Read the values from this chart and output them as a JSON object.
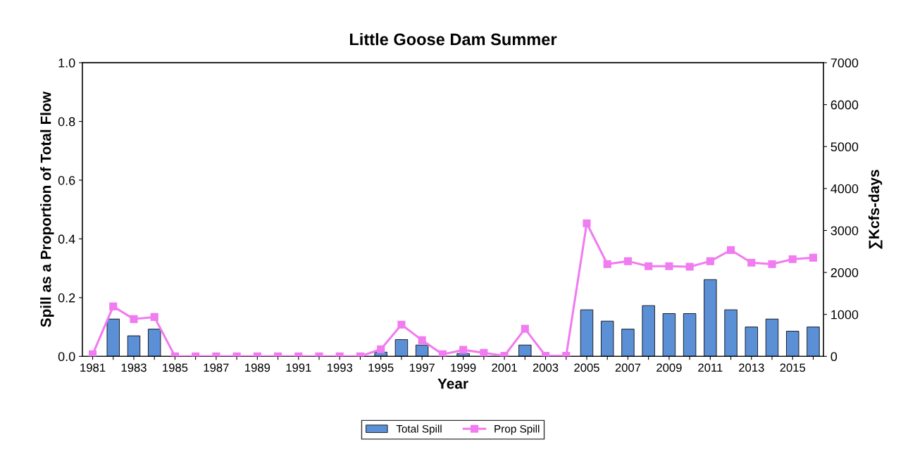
{
  "chart_data": {
    "type": "bar",
    "title": "Little Goose Dam Summer",
    "xlabel": "Year",
    "ylabel": "Spill as a Proportion of Total Flow",
    "y2label": "∑Kcfs-days",
    "categories": [
      "1981",
      null,
      "1983",
      null,
      "1985",
      null,
      "1987",
      null,
      "1989",
      null,
      "1991",
      null,
      "1993",
      null,
      "1995",
      null,
      "1997",
      null,
      "1999",
      null,
      "2001",
      null,
      "2003",
      null,
      "2005",
      null,
      "2007",
      null,
      "2009",
      null,
      "2011",
      null,
      "2013",
      null,
      "2015",
      null
    ],
    "series": [
      {
        "name": "Total Spill",
        "axis": "y2",
        "color": "#5b8fd6",
        "values": [
          null,
          890,
          490,
          650,
          null,
          null,
          null,
          null,
          null,
          null,
          null,
          null,
          null,
          null,
          100,
          400,
          270,
          null,
          70,
          null,
          null,
          270,
          null,
          null,
          1110,
          840,
          650,
          1210,
          1020,
          1020,
          1830,
          1110,
          700,
          890,
          600,
          700
        ]
      },
      {
        "name": "Prop Spill",
        "type": "line",
        "axis": "y",
        "color": "#f07cf0",
        "marker": "square",
        "values": [
          0.007,
          0.17,
          0.127,
          0.134,
          0,
          0,
          0,
          0,
          0,
          0,
          0,
          0,
          0,
          0,
          0.024,
          0.108,
          0.055,
          0.007,
          0.022,
          0.012,
          0.002,
          0.094,
          0.002,
          0.002,
          0.453,
          0.314,
          0.324,
          0.307,
          0.307,
          0.305,
          0.324,
          0.362,
          0.319,
          0.314,
          0.331,
          0.336
        ]
      }
    ],
    "ylim": [
      0,
      1
    ],
    "yticks": [
      {
        "value": 0,
        "label": "0.0"
      },
      {
        "value": 0.2,
        "label": "0.2"
      },
      {
        "value": 0.4,
        "label": "0.4"
      },
      {
        "value": 0.6,
        "label": "0.6"
      },
      {
        "value": 0.8,
        "label": "0.8"
      },
      {
        "value": 1,
        "label": "1.0"
      }
    ],
    "y2lim": [
      0,
      7000
    ],
    "y2ticks": [
      0,
      1000,
      2000,
      3000,
      4000,
      5000,
      6000,
      7000
    ],
    "grid": false,
    "legend": "bottom"
  }
}
